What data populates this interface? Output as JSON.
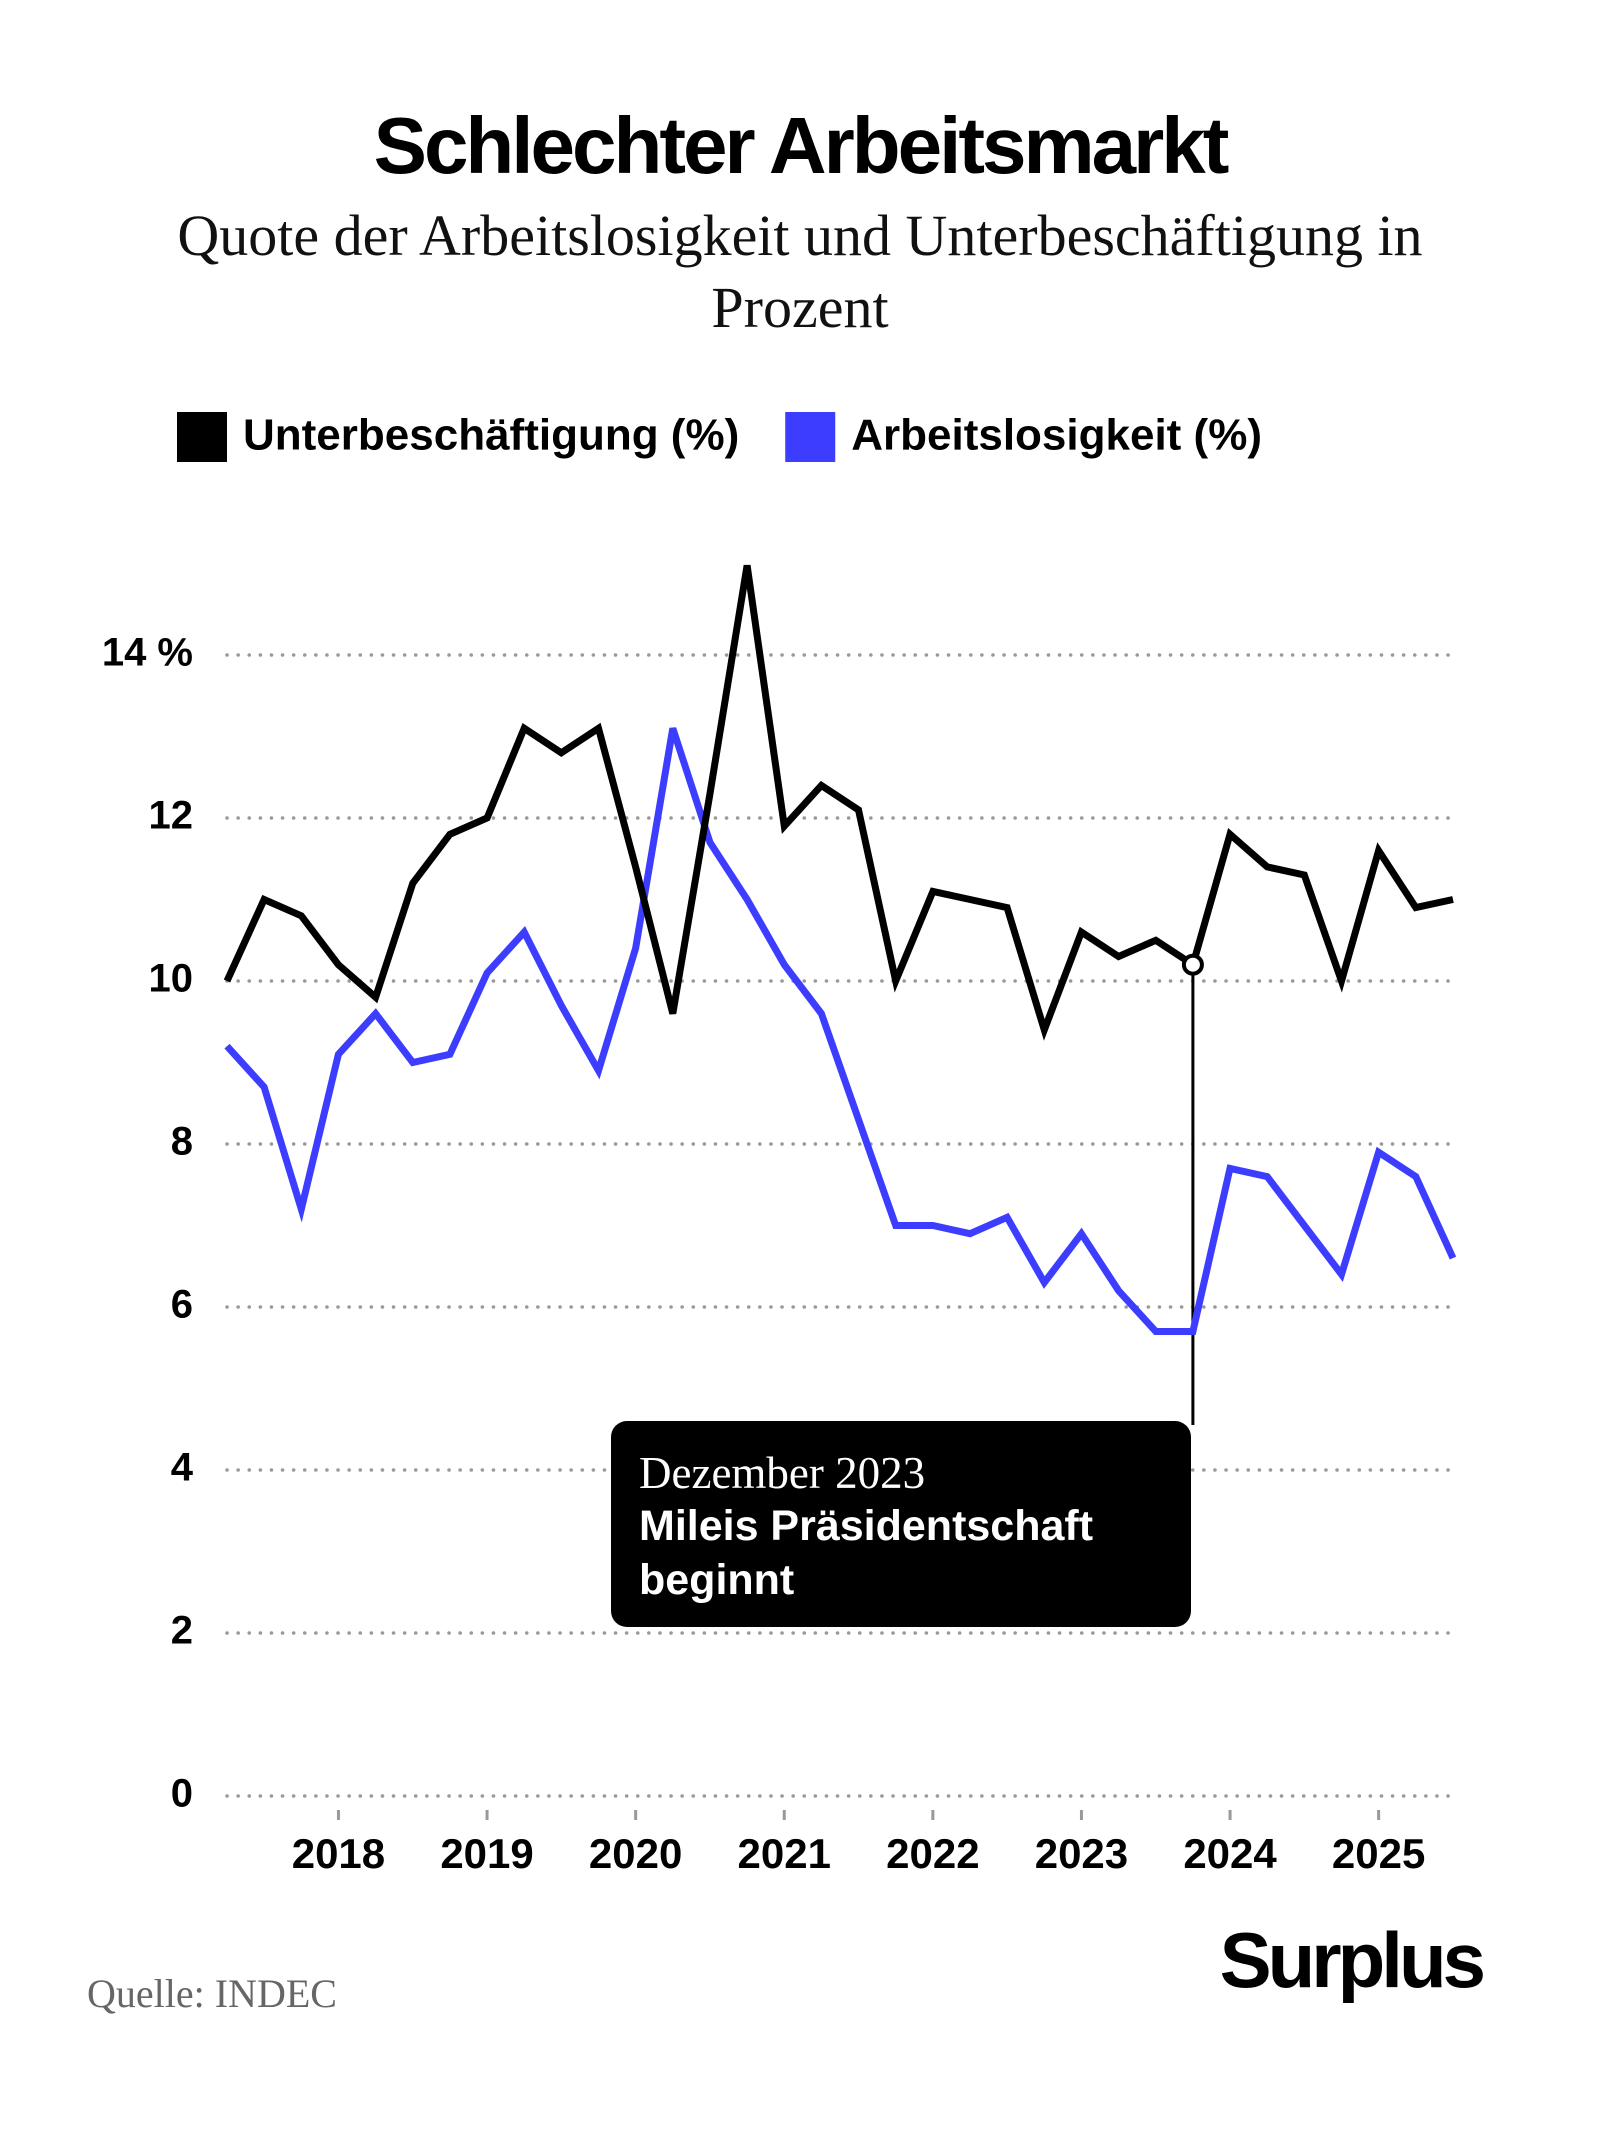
{
  "chart_data": {
    "type": "line",
    "title": "Schlechter Arbeitsmarkt",
    "subtitle": "Quote der Arbeitslosigkeit und Unterbeschäftigung in Prozent",
    "categories": [
      null,
      null,
      null,
      "2018",
      null,
      null,
      null,
      "2019",
      null,
      null,
      null,
      "2020",
      null,
      null,
      null,
      "2021",
      null,
      null,
      null,
      "2022",
      null,
      null,
      null,
      "2023",
      null,
      null,
      null,
      "2024",
      null,
      null,
      null,
      "2025",
      null,
      null
    ],
    "series": [
      {
        "name": "Unterbeschäftigung (%)",
        "color": "#000000",
        "values": [
          10.0,
          11.0,
          10.8,
          10.2,
          9.8,
          11.2,
          11.8,
          12.0,
          13.1,
          12.8,
          13.1,
          11.4,
          9.6,
          12.3,
          15.1,
          11.9,
          12.4,
          12.1,
          10.0,
          11.1,
          11.0,
          10.9,
          9.4,
          10.6,
          10.3,
          10.5,
          10.2,
          11.8,
          11.4,
          11.3,
          10.0,
          11.6,
          10.9,
          11.0
        ]
      },
      {
        "name": "Arbeitslosigkeit (%)",
        "color": "#3d3dff",
        "values": [
          9.2,
          8.7,
          7.2,
          9.1,
          9.6,
          9.0,
          9.1,
          10.1,
          10.6,
          9.7,
          8.9,
          10.4,
          13.1,
          11.7,
          11.0,
          10.2,
          9.6,
          8.3,
          7.0,
          7.0,
          6.9,
          7.1,
          6.3,
          6.9,
          6.2,
          5.7,
          5.7,
          7.7,
          7.6,
          7.0,
          6.4,
          7.9,
          7.6,
          6.6
        ]
      }
    ],
    "ylim": [
      0,
      14
    ],
    "yticks": [
      0,
      2,
      4,
      6,
      8,
      10,
      12,
      {
        "value": 14,
        "label": "14 %"
      }
    ],
    "grid": true,
    "legend": "top",
    "annotation": {
      "date": "Dezember 2023",
      "text": "Mileis Präsidentschaft beginnt"
    },
    "source": "Quelle: INDEC",
    "logo": "Surplus"
  }
}
